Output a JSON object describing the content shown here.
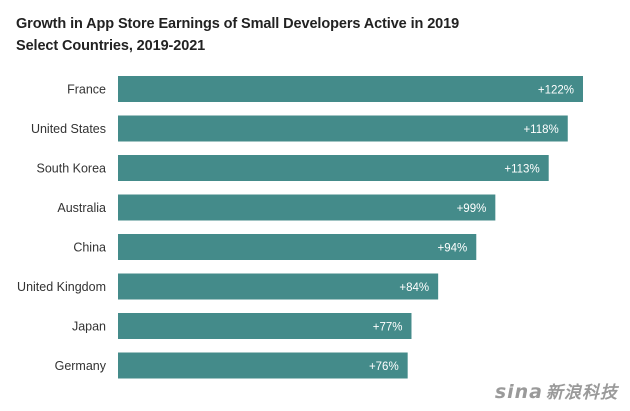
{
  "chart_data": {
    "type": "bar",
    "orientation": "horizontal",
    "title": "Growth in App Store Earnings of Small Developers Active in 2019",
    "subtitle": "Select Countries, 2019-2021",
    "xlabel": "",
    "ylabel": "",
    "categories": [
      "France",
      "United States",
      "South Korea",
      "Australia",
      "China",
      "United Kingdom",
      "Japan",
      "Germany"
    ],
    "values": [
      122,
      118,
      113,
      99,
      94,
      84,
      77,
      76
    ],
    "data_labels": [
      "+122%",
      "+118%",
      "+113%",
      "+99%",
      "+94%",
      "+84%",
      "+77%",
      "+76%"
    ],
    "unit": "%",
    "xlim": [
      0,
      122
    ],
    "grid": false,
    "legend": "none",
    "bar_color": "#448b8a"
  },
  "watermark": {
    "logo": "sina",
    "text": "新浪科技"
  }
}
